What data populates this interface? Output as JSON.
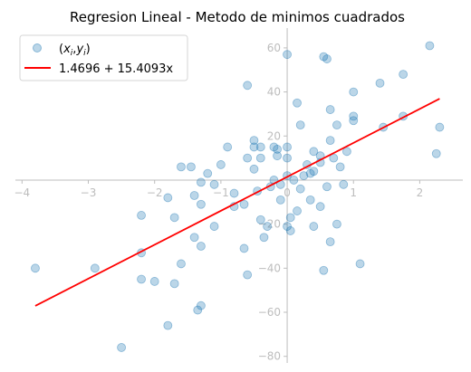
{
  "chart_data": {
    "type": "scatter",
    "title": "Regresion Lineal - Metodo de minimos cuadrados",
    "xlabel": "",
    "ylabel": "",
    "xlim": [
      -4.1,
      2.65
    ],
    "ylim": [
      -83,
      69
    ],
    "x_ticks": [
      -4,
      -3,
      -2,
      -1,
      0,
      1,
      2
    ],
    "y_ticks": [
      -80,
      -60,
      -40,
      -20,
      20,
      40,
      60
    ],
    "grid": false,
    "legend_position": "top-left",
    "colors": {
      "points": "#1f77b4",
      "line": "#ff0000",
      "axis": "#bdbdbd"
    },
    "series": [
      {
        "name": "(x_i, y_i)",
        "type": "scatter",
        "points": [
          [
            -3.8,
            -40
          ],
          [
            -2.9,
            -40
          ],
          [
            -2.5,
            -76
          ],
          [
            -2.2,
            -33
          ],
          [
            -2.2,
            -45
          ],
          [
            -2.2,
            -16
          ],
          [
            -2.0,
            -46
          ],
          [
            -1.8,
            -66
          ],
          [
            -1.8,
            -8
          ],
          [
            -1.7,
            -17
          ],
          [
            -1.7,
            -47
          ],
          [
            -1.6,
            -38
          ],
          [
            -1.6,
            6
          ],
          [
            -1.45,
            6
          ],
          [
            -1.4,
            -7
          ],
          [
            -1.4,
            -26
          ],
          [
            -1.35,
            -59
          ],
          [
            -1.3,
            -57
          ],
          [
            -1.3,
            -30
          ],
          [
            -1.3,
            -11
          ],
          [
            -1.3,
            -1
          ],
          [
            -1.2,
            3
          ],
          [
            -1.1,
            -2
          ],
          [
            -1.1,
            -21
          ],
          [
            -1.0,
            7
          ],
          [
            -0.9,
            15
          ],
          [
            -0.8,
            -12
          ],
          [
            -0.8,
            -6
          ],
          [
            -0.65,
            -31
          ],
          [
            -0.65,
            -11
          ],
          [
            -0.6,
            -43
          ],
          [
            -0.6,
            43
          ],
          [
            -0.6,
            10
          ],
          [
            -0.5,
            15
          ],
          [
            -0.5,
            5
          ],
          [
            -0.5,
            18
          ],
          [
            -0.45,
            -5
          ],
          [
            -0.4,
            -18
          ],
          [
            -0.4,
            15
          ],
          [
            -0.4,
            10
          ],
          [
            -0.35,
            -26
          ],
          [
            -0.3,
            -21
          ],
          [
            -0.25,
            -3
          ],
          [
            -0.2,
            15
          ],
          [
            -0.2,
            0
          ],
          [
            -0.15,
            11
          ],
          [
            -0.15,
            14
          ],
          [
            -0.1,
            -9
          ],
          [
            -0.1,
            -2
          ],
          [
            0.0,
            57
          ],
          [
            0.0,
            15
          ],
          [
            0.0,
            10
          ],
          [
            0.0,
            2
          ],
          [
            0.0,
            -21
          ],
          [
            0.05,
            -23
          ],
          [
            0.05,
            -17
          ],
          [
            0.1,
            0
          ],
          [
            0.15,
            35
          ],
          [
            0.15,
            -14
          ],
          [
            0.2,
            25
          ],
          [
            0.2,
            -4
          ],
          [
            0.25,
            2
          ],
          [
            0.3,
            7
          ],
          [
            0.35,
            3
          ],
          [
            0.35,
            -9
          ],
          [
            0.4,
            13
          ],
          [
            0.4,
            4
          ],
          [
            0.4,
            -21
          ],
          [
            0.5,
            11
          ],
          [
            0.5,
            8
          ],
          [
            0.5,
            -12
          ],
          [
            0.55,
            -41
          ],
          [
            0.55,
            56
          ],
          [
            0.6,
            55
          ],
          [
            0.6,
            -3
          ],
          [
            0.65,
            32
          ],
          [
            0.65,
            -28
          ],
          [
            0.65,
            18
          ],
          [
            0.7,
            10
          ],
          [
            0.75,
            -20
          ],
          [
            0.75,
            25
          ],
          [
            0.8,
            6
          ],
          [
            0.85,
            -2
          ],
          [
            0.9,
            13
          ],
          [
            1.0,
            27
          ],
          [
            1.0,
            29
          ],
          [
            1.0,
            40
          ],
          [
            1.1,
            -38
          ],
          [
            1.4,
            44
          ],
          [
            1.45,
            24
          ],
          [
            1.75,
            48
          ],
          [
            1.75,
            29
          ],
          [
            2.15,
            61
          ],
          [
            2.25,
            12
          ],
          [
            2.3,
            24
          ]
        ]
      },
      {
        "name": "1.4696 + 15.4093x",
        "type": "line",
        "intercept": 1.4696,
        "slope": 15.4093,
        "x_range": [
          -3.8,
          2.3
        ]
      }
    ]
  }
}
